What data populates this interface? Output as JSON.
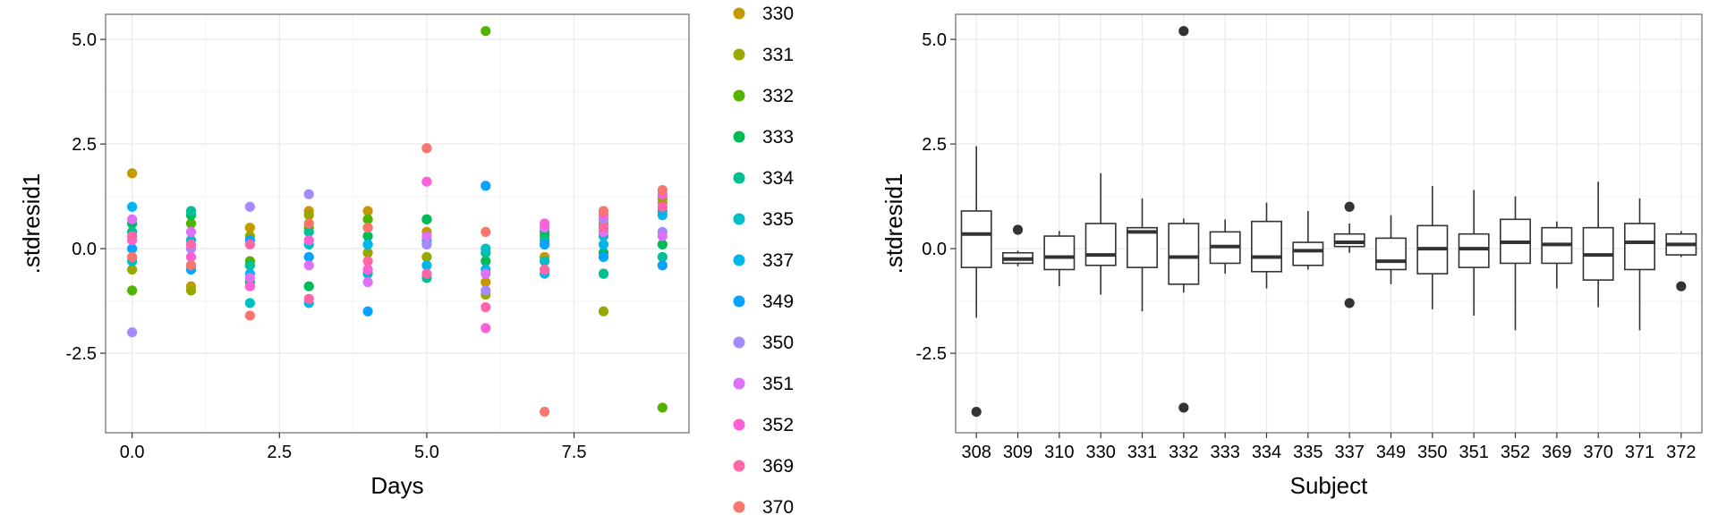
{
  "colors": {
    "panel_border": "#7f7f7f",
    "grid_major": "#ebebeb",
    "grid_minor": "#f5f5f5",
    "box_stroke": "#333333",
    "legend_colors": [
      "#C49A00",
      "#99A800",
      "#53B400",
      "#00BC56",
      "#00C094",
      "#00BFC4",
      "#00B6EB",
      "#06A4FF",
      "#A58AFF",
      "#DF70F8",
      "#FB61D7",
      "#FF66A8",
      "#F8766D"
    ]
  },
  "chart_data": [
    {
      "type": "scatter",
      "xlabel": "Days",
      "ylabel": ".stdresid1",
      "xlim": [
        -0.45,
        9.45
      ],
      "ylim": [
        -4.4,
        5.6
      ],
      "x_ticks": [
        0.0,
        2.5,
        5.0,
        7.5
      ],
      "x_tick_labels": [
        "0.0",
        "2.5",
        "5.0",
        "7.5"
      ],
      "y_ticks": [
        -2.5,
        0.0,
        2.5,
        5.0
      ],
      "y_tick_labels": [
        "-2.5",
        "0.0",
        "2.5",
        "5.0"
      ],
      "grid": true,
      "legend_position": "right",
      "legend_labels": [
        "330",
        "331",
        "332",
        "333",
        "334",
        "335",
        "337",
        "349",
        "350",
        "351",
        "352",
        "369",
        "370"
      ],
      "series": [
        {
          "name": "330",
          "color": "#C49A00",
          "points": [
            [
              0,
              1.8
            ],
            [
              1,
              -0.9
            ],
            [
              2,
              0.5
            ],
            [
              3,
              0.9
            ],
            [
              4,
              0.9
            ],
            [
              5,
              0.4
            ],
            [
              6,
              -0.8
            ],
            [
              7,
              -0.2
            ],
            [
              8,
              0.6
            ],
            [
              9,
              1.1
            ]
          ]
        },
        {
          "name": "331",
          "color": "#99A800",
          "points": [
            [
              0,
              -0.5
            ],
            [
              1,
              -1.0
            ],
            [
              2,
              0.3
            ],
            [
              3,
              0.8
            ],
            [
              4,
              -0.1
            ],
            [
              5,
              -0.2
            ],
            [
              6,
              -1.1
            ],
            [
              7,
              0.1
            ],
            [
              8,
              -1.5
            ],
            [
              9,
              1.2
            ]
          ]
        },
        {
          "name": "332",
          "color": "#53B400",
          "points": [
            [
              0,
              -1.0
            ],
            [
              1,
              0.6
            ],
            [
              2,
              -0.3
            ],
            [
              3,
              0.5
            ],
            [
              4,
              0.7
            ],
            [
              5,
              0.7
            ],
            [
              6,
              5.2
            ],
            [
              7,
              0.3
            ],
            [
              8,
              -0.6
            ],
            [
              9,
              -3.8
            ]
          ]
        },
        {
          "name": "333",
          "color": "#00BC56",
          "points": [
            [
              0,
              0.6
            ],
            [
              1,
              0.8
            ],
            [
              2,
              -0.8
            ],
            [
              3,
              -0.9
            ],
            [
              4,
              0.3
            ],
            [
              5,
              0.7
            ],
            [
              6,
              -0.3
            ],
            [
              7,
              0.4
            ],
            [
              8,
              -0.1
            ],
            [
              9,
              0.1
            ]
          ]
        },
        {
          "name": "334",
          "color": "#00C094",
          "points": [
            [
              0,
              0.4
            ],
            [
              1,
              0.9
            ],
            [
              2,
              -0.4
            ],
            [
              3,
              0.4
            ],
            [
              4,
              0.1
            ],
            [
              5,
              -0.7
            ],
            [
              6,
              -0.1
            ],
            [
              7,
              0.2
            ],
            [
              8,
              -0.6
            ],
            [
              9,
              -0.2
            ]
          ]
        },
        {
          "name": "335",
          "color": "#00BFC4",
          "points": [
            [
              0,
              -0.3
            ],
            [
              1,
              0.2
            ],
            [
              2,
              -1.3
            ],
            [
              3,
              0.1
            ],
            [
              4,
              -0.6
            ],
            [
              5,
              0.2
            ],
            [
              6,
              0.0
            ],
            [
              7,
              -0.3
            ],
            [
              8,
              0.3
            ],
            [
              9,
              0.9
            ]
          ]
        },
        {
          "name": "337",
          "color": "#00B6EB",
          "points": [
            [
              0,
              1.0
            ],
            [
              1,
              -0.4
            ],
            [
              2,
              -0.6
            ],
            [
              3,
              -1.3
            ],
            [
              4,
              0.1
            ],
            [
              5,
              -0.4
            ],
            [
              6,
              -0.5
            ],
            [
              7,
              -0.6
            ],
            [
              8,
              0.1
            ],
            [
              9,
              0.8
            ]
          ]
        },
        {
          "name": "349",
          "color": "#06A4FF",
          "points": [
            [
              0,
              0.0
            ],
            [
              1,
              -0.5
            ],
            [
              2,
              0.2
            ],
            [
              3,
              -0.2
            ],
            [
              4,
              -1.5
            ],
            [
              5,
              0.1
            ],
            [
              6,
              1.5
            ],
            [
              7,
              0.1
            ],
            [
              8,
              -0.2
            ],
            [
              9,
              -0.4
            ]
          ]
        },
        {
          "name": "350",
          "color": "#A58AFF",
          "points": [
            [
              0,
              -2.0
            ],
            [
              1,
              0.0
            ],
            [
              2,
              1.0
            ],
            [
              3,
              1.3
            ],
            [
              4,
              0.5
            ],
            [
              5,
              0.1
            ],
            [
              6,
              -1.0
            ],
            [
              7,
              0.5
            ],
            [
              8,
              0.7
            ],
            [
              9,
              0.4
            ]
          ]
        },
        {
          "name": "351",
          "color": "#DF70F8",
          "points": [
            [
              0,
              0.7
            ],
            [
              1,
              0.4
            ],
            [
              2,
              -0.7
            ],
            [
              3,
              -0.4
            ],
            [
              4,
              -0.8
            ],
            [
              5,
              0.3
            ],
            [
              6,
              -0.6
            ],
            [
              7,
              0.5
            ],
            [
              8,
              0.4
            ],
            [
              9,
              0.3
            ]
          ]
        },
        {
          "name": "352",
          "color": "#FB61D7",
          "points": [
            [
              0,
              0.2
            ],
            [
              1,
              -0.2
            ],
            [
              2,
              -0.9
            ],
            [
              3,
              0.2
            ],
            [
              4,
              -0.5
            ],
            [
              5,
              1.6
            ],
            [
              6,
              -1.9
            ],
            [
              7,
              0.6
            ],
            [
              8,
              0.8
            ],
            [
              9,
              1.3
            ]
          ]
        },
        {
          "name": "369",
          "color": "#FF66A8",
          "points": [
            [
              0,
              0.3
            ],
            [
              1,
              0.1
            ],
            [
              2,
              0.1
            ],
            [
              3,
              -1.2
            ],
            [
              4,
              -0.3
            ],
            [
              5,
              -0.6
            ],
            [
              6,
              -1.4
            ],
            [
              7,
              -0.5
            ],
            [
              8,
              0.5
            ],
            [
              9,
              1.0
            ]
          ]
        },
        {
          "name": "370",
          "color": "#F8766D",
          "points": [
            [
              0,
              -0.2
            ],
            [
              1,
              -0.4
            ],
            [
              2,
              -1.6
            ],
            [
              3,
              0.6
            ],
            [
              4,
              0.5
            ],
            [
              5,
              2.4
            ],
            [
              6,
              0.4
            ],
            [
              7,
              -3.9
            ],
            [
              8,
              0.9
            ],
            [
              9,
              1.4
            ]
          ]
        }
      ]
    },
    {
      "type": "boxplot",
      "xlabel": "Subject",
      "ylabel": ".stdresid1",
      "ylim": [
        -4.4,
        5.6
      ],
      "y_ticks": [
        -2.5,
        0.0,
        2.5,
        5.0
      ],
      "y_tick_labels": [
        "-2.5",
        "0.0",
        "2.5",
        "5.0"
      ],
      "grid": true,
      "categories": [
        "308",
        "309",
        "310",
        "330",
        "331",
        "332",
        "333",
        "334",
        "335",
        "337",
        "349",
        "350",
        "351",
        "352",
        "369",
        "370",
        "371",
        "372"
      ],
      "boxes": [
        {
          "q1": -0.45,
          "median": 0.35,
          "q3": 0.9,
          "wlo": -1.65,
          "whi": 2.45,
          "outliers": [
            -3.9
          ]
        },
        {
          "q1": -0.35,
          "median": -0.25,
          "q3": -0.1,
          "wlo": -0.42,
          "whi": -0.05,
          "outliers": [
            0.45
          ]
        },
        {
          "q1": -0.5,
          "median": -0.2,
          "q3": 0.3,
          "wlo": -0.9,
          "whi": 0.42,
          "outliers": []
        },
        {
          "q1": -0.4,
          "median": -0.15,
          "q3": 0.6,
          "wlo": -1.1,
          "whi": 1.8,
          "outliers": []
        },
        {
          "q1": -0.45,
          "median": 0.4,
          "q3": 0.5,
          "wlo": -1.5,
          "whi": 1.2,
          "outliers": []
        },
        {
          "q1": -0.85,
          "median": -0.2,
          "q3": 0.6,
          "wlo": -1.05,
          "whi": 0.72,
          "outliers": [
            5.2,
            -3.8
          ]
        },
        {
          "q1": -0.35,
          "median": 0.05,
          "q3": 0.4,
          "wlo": -0.6,
          "whi": 0.7,
          "outliers": []
        },
        {
          "q1": -0.55,
          "median": -0.2,
          "q3": 0.65,
          "wlo": -0.95,
          "whi": 1.1,
          "outliers": []
        },
        {
          "q1": -0.4,
          "median": -0.05,
          "q3": 0.15,
          "wlo": -0.5,
          "whi": 0.9,
          "outliers": []
        },
        {
          "q1": 0.05,
          "median": 0.15,
          "q3": 0.35,
          "wlo": -0.1,
          "whi": 0.6,
          "outliers": [
            1.0,
            -1.3
          ]
        },
        {
          "q1": -0.5,
          "median": -0.3,
          "q3": 0.25,
          "wlo": -0.85,
          "whi": 0.8,
          "outliers": []
        },
        {
          "q1": -0.6,
          "median": 0.0,
          "q3": 0.55,
          "wlo": -1.45,
          "whi": 1.5,
          "outliers": []
        },
        {
          "q1": -0.45,
          "median": 0.0,
          "q3": 0.35,
          "wlo": -1.6,
          "whi": 1.4,
          "outliers": []
        },
        {
          "q1": -0.35,
          "median": 0.15,
          "q3": 0.7,
          "wlo": -1.95,
          "whi": 1.25,
          "outliers": []
        },
        {
          "q1": -0.35,
          "median": 0.1,
          "q3": 0.5,
          "wlo": -0.95,
          "whi": 0.65,
          "outliers": []
        },
        {
          "q1": -0.75,
          "median": -0.15,
          "q3": 0.5,
          "wlo": -1.4,
          "whi": 1.6,
          "outliers": []
        },
        {
          "q1": -0.5,
          "median": 0.15,
          "q3": 0.6,
          "wlo": -1.95,
          "whi": 1.2,
          "outliers": []
        },
        {
          "q1": -0.15,
          "median": 0.1,
          "q3": 0.35,
          "wlo": -0.2,
          "whi": 0.42,
          "outliers": [
            -0.9
          ]
        }
      ]
    }
  ]
}
